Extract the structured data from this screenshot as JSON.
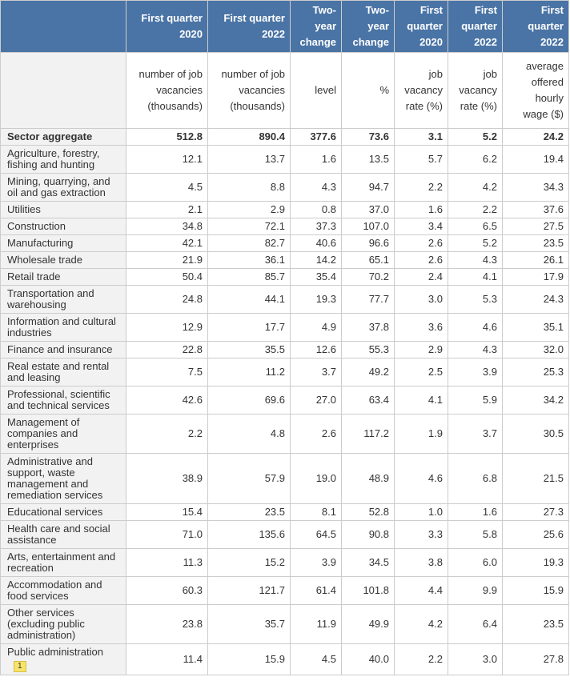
{
  "table": {
    "columns": [
      "First quarter 2020",
      "First quarter 2022",
      "Two-year change",
      "Two-year change",
      "First quarter 2020",
      "First quarter 2022",
      "First quarter 2022"
    ],
    "units": [
      "number of job vacancies (thousands)",
      "number of job vacancies (thousands)",
      "level",
      "%",
      "job vacancy rate (%)",
      "job vacancy rate (%)",
      "average offered hourly wage ($)"
    ],
    "rows": [
      {
        "sector": "Sector aggregate",
        "values": [
          "512.8",
          "890.4",
          "377.6",
          "73.6",
          "3.1",
          "5.2",
          "24.2"
        ]
      },
      {
        "sector": "Agriculture, forestry, fishing and hunting",
        "values": [
          "12.1",
          "13.7",
          "1.6",
          "13.5",
          "5.7",
          "6.2",
          "19.4"
        ]
      },
      {
        "sector": "Mining, quarrying, and oil and gas extraction",
        "values": [
          "4.5",
          "8.8",
          "4.3",
          "94.7",
          "2.2",
          "4.2",
          "34.3"
        ]
      },
      {
        "sector": "Utilities",
        "values": [
          "2.1",
          "2.9",
          "0.8",
          "37.0",
          "1.6",
          "2.2",
          "37.6"
        ]
      },
      {
        "sector": "Construction",
        "values": [
          "34.8",
          "72.1",
          "37.3",
          "107.0",
          "3.4",
          "6.5",
          "27.5"
        ]
      },
      {
        "sector": "Manufacturing",
        "values": [
          "42.1",
          "82.7",
          "40.6",
          "96.6",
          "2.6",
          "5.2",
          "23.5"
        ]
      },
      {
        "sector": "Wholesale trade",
        "values": [
          "21.9",
          "36.1",
          "14.2",
          "65.1",
          "2.6",
          "4.3",
          "26.1"
        ]
      },
      {
        "sector": "Retail trade",
        "values": [
          "50.4",
          "85.7",
          "35.4",
          "70.2",
          "2.4",
          "4.1",
          "17.9"
        ]
      },
      {
        "sector": "Transportation and warehousing",
        "values": [
          "24.8",
          "44.1",
          "19.3",
          "77.7",
          "3.0",
          "5.3",
          "24.3"
        ]
      },
      {
        "sector": "Information and cultural industries",
        "values": [
          "12.9",
          "17.7",
          "4.9",
          "37.8",
          "3.6",
          "4.6",
          "35.1"
        ]
      },
      {
        "sector": "Finance and insurance",
        "values": [
          "22.8",
          "35.5",
          "12.6",
          "55.3",
          "2.9",
          "4.3",
          "32.0"
        ]
      },
      {
        "sector": "Real estate and rental and leasing",
        "values": [
          "7.5",
          "11.2",
          "3.7",
          "49.2",
          "2.5",
          "3.9",
          "25.3"
        ]
      },
      {
        "sector": "Professional, scientific and technical services",
        "values": [
          "42.6",
          "69.6",
          "27.0",
          "63.4",
          "4.1",
          "5.9",
          "34.2"
        ]
      },
      {
        "sector": "Management of companies and enterprises",
        "values": [
          "2.2",
          "4.8",
          "2.6",
          "117.2",
          "1.9",
          "3.7",
          "30.5"
        ]
      },
      {
        "sector": "Administrative and support, waste management and remediation services",
        "values": [
          "38.9",
          "57.9",
          "19.0",
          "48.9",
          "4.6",
          "6.8",
          "21.5"
        ]
      },
      {
        "sector": "Educational services",
        "values": [
          "15.4",
          "23.5",
          "8.1",
          "52.8",
          "1.0",
          "1.6",
          "27.3"
        ]
      },
      {
        "sector": "Health care and social assistance",
        "values": [
          "71.0",
          "135.6",
          "64.5",
          "90.8",
          "3.3",
          "5.8",
          "25.6"
        ]
      },
      {
        "sector": "Arts, entertainment and recreation",
        "values": [
          "11.3",
          "15.2",
          "3.9",
          "34.5",
          "3.8",
          "6.0",
          "19.3"
        ]
      },
      {
        "sector": "Accommodation and food services",
        "values": [
          "60.3",
          "121.7",
          "61.4",
          "101.8",
          "4.4",
          "9.9",
          "15.9"
        ]
      },
      {
        "sector": "Other services (excluding public administration)",
        "values": [
          "23.8",
          "35.7",
          "11.9",
          "49.9",
          "4.2",
          "6.4",
          "23.5"
        ]
      },
      {
        "sector": "Public administration",
        "footnote": "1",
        "values": [
          "11.4",
          "15.9",
          "4.5",
          "40.0",
          "2.2",
          "3.0",
          "27.8"
        ]
      }
    ]
  }
}
